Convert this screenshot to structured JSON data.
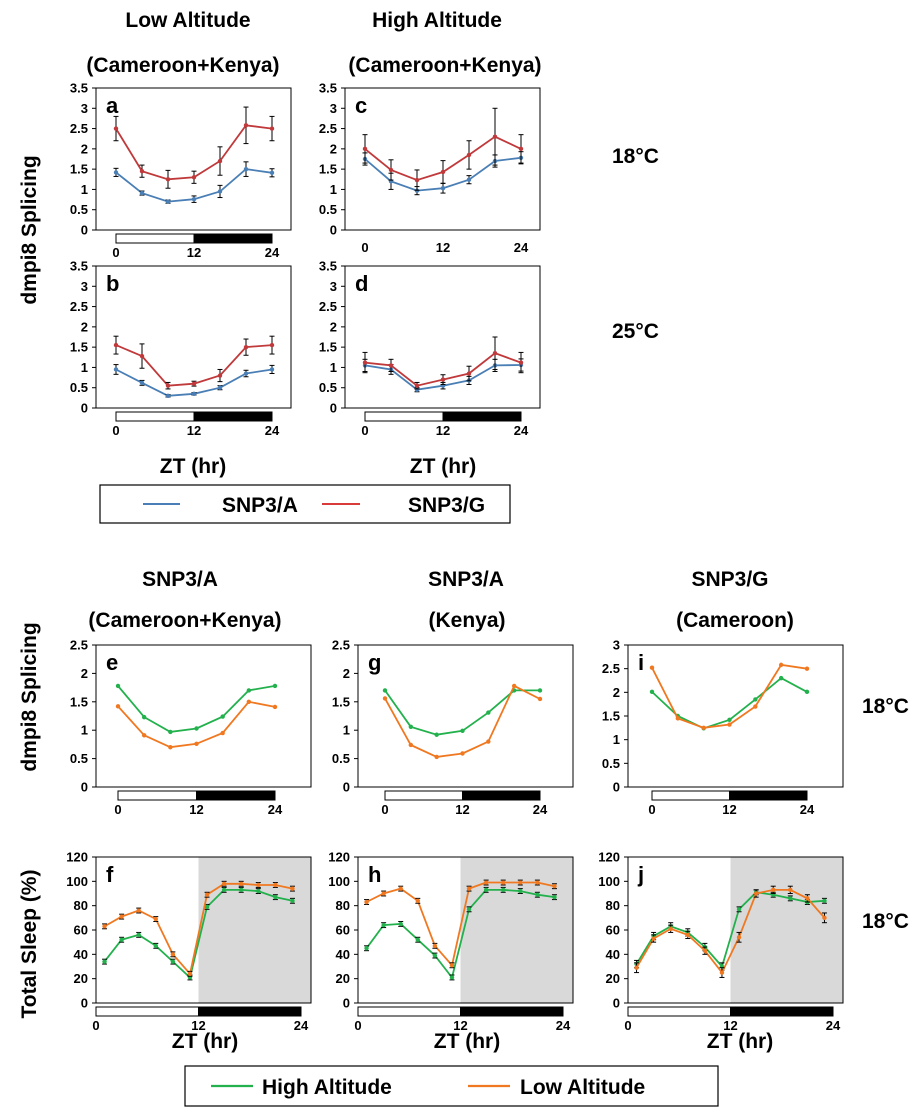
{
  "top_headers": [
    {
      "line1": "Low Altitude",
      "line2": "(Cameroon+Kenya)"
    },
    {
      "line1": "High Altitude",
      "line2": "(Cameroon+Kenya)"
    }
  ],
  "bottom_headers": [
    {
      "line1": "SNP3/A",
      "line2": "(Cameroon+Kenya)"
    },
    {
      "line1": "SNP3/A",
      "line2": "(Kenya)"
    },
    {
      "line1": "SNP3/G",
      "line2": "(Cameroon)"
    }
  ],
  "ylabel_top": "dmpi8 Splicing",
  "ylabel_bottom_splicing": "dmpi8 Splicing",
  "ylabel_bottom_sleep": "Total Sleep (%)",
  "xlabel": "ZT (hr)",
  "temps": {
    "top_row1": "18°C",
    "top_row2": "25°C",
    "bottom_row1": "18°C",
    "bottom_row2": "18°C"
  },
  "legend_top": {
    "items": [
      {
        "label": "SNP3/A",
        "color": "#4a7fb5"
      },
      {
        "label": "SNP3/G",
        "color": "#d93a3a"
      }
    ]
  },
  "legend_bottom": {
    "items": [
      {
        "label": "High Altitude",
        "color": "#22b14c"
      },
      {
        "label": "Low Altitude",
        "color": "#f07820"
      }
    ]
  },
  "colors": {
    "snp3a": "#4a7fb5",
    "snp3g": "#c0393b",
    "high": "#22b14c",
    "low": "#f07820",
    "shade": "#d9d9d9"
  },
  "chart_data": [
    {
      "id": "a",
      "label": "a",
      "type": "line",
      "xticks": [
        0,
        12,
        24
      ],
      "yticks": [
        0,
        0.5,
        1,
        1.5,
        2,
        2.5,
        3,
        3.5
      ],
      "xlim": [
        0,
        24
      ],
      "ylim": [
        0,
        3.5
      ],
      "light_dark_bar": true,
      "shaded_dark": false,
      "series": [
        {
          "key": "snp3a",
          "x": [
            0,
            4,
            8,
            12,
            16,
            20,
            24
          ],
          "y": [
            1.42,
            0.91,
            0.7,
            0.76,
            0.95,
            1.5,
            1.41
          ],
          "err": [
            0.1,
            0.05,
            0.04,
            0.08,
            0.15,
            0.18,
            0.1
          ]
        },
        {
          "key": "snp3g",
          "x": [
            0,
            4,
            8,
            12,
            16,
            20,
            24
          ],
          "y": [
            2.5,
            1.45,
            1.25,
            1.3,
            1.7,
            2.58,
            2.5
          ],
          "err": [
            0.3,
            0.15,
            0.22,
            0.15,
            0.35,
            0.45,
            0.3
          ]
        }
      ]
    },
    {
      "id": "c",
      "label": "c",
      "type": "line",
      "xticks": [
        0,
        12,
        24
      ],
      "yticks": [
        0,
        0.5,
        1,
        1.5,
        2,
        2.5,
        3,
        3.5
      ],
      "xlim": [
        0,
        24
      ],
      "ylim": [
        0,
        3.5
      ],
      "light_dark_bar": false,
      "shaded_dark": false,
      "series": [
        {
          "key": "snp3a",
          "x": [
            0,
            4,
            8,
            12,
            16,
            20,
            24
          ],
          "y": [
            1.75,
            1.2,
            0.97,
            1.03,
            1.24,
            1.7,
            1.78
          ],
          "err": [
            0.15,
            0.2,
            0.1,
            0.12,
            0.1,
            0.15,
            0.15
          ]
        },
        {
          "key": "snp3g",
          "x": [
            0,
            4,
            8,
            12,
            16,
            20,
            24
          ],
          "y": [
            2.0,
            1.48,
            1.23,
            1.43,
            1.85,
            2.3,
            2.0
          ],
          "err": [
            0.35,
            0.25,
            0.25,
            0.28,
            0.35,
            0.7,
            0.35
          ]
        }
      ]
    },
    {
      "id": "b",
      "label": "b",
      "type": "line",
      "xticks": [
        0,
        12,
        24
      ],
      "yticks": [
        0,
        0.5,
        1,
        1.5,
        2,
        2.5,
        3,
        3.5
      ],
      "xlim": [
        0,
        24
      ],
      "ylim": [
        0,
        3.5
      ],
      "light_dark_bar": true,
      "shaded_dark": false,
      "series": [
        {
          "key": "snp3a",
          "x": [
            0,
            4,
            8,
            12,
            16,
            20,
            24
          ],
          "y": [
            0.95,
            0.62,
            0.3,
            0.35,
            0.5,
            0.85,
            0.95
          ],
          "err": [
            0.12,
            0.06,
            0.03,
            0.03,
            0.05,
            0.08,
            0.1
          ]
        },
        {
          "key": "snp3g",
          "x": [
            0,
            4,
            8,
            12,
            16,
            20,
            24
          ],
          "y": [
            1.55,
            1.28,
            0.55,
            0.6,
            0.8,
            1.5,
            1.55
          ],
          "err": [
            0.22,
            0.3,
            0.08,
            0.06,
            0.15,
            0.2,
            0.22
          ]
        }
      ]
    },
    {
      "id": "d",
      "label": "d",
      "type": "line",
      "xticks": [
        0,
        12,
        24
      ],
      "yticks": [
        0,
        0.5,
        1,
        1.5,
        2,
        2.5,
        3,
        3.5
      ],
      "xlim": [
        0,
        24
      ],
      "ylim": [
        0,
        3.5
      ],
      "light_dark_bar": true,
      "shaded_dark": false,
      "series": [
        {
          "key": "snp3a",
          "x": [
            0,
            4,
            8,
            12,
            16,
            20,
            24
          ],
          "y": [
            1.05,
            0.95,
            0.45,
            0.55,
            0.68,
            1.05,
            1.06
          ],
          "err": [
            0.15,
            0.12,
            0.05,
            0.08,
            0.1,
            0.15,
            0.15
          ]
        },
        {
          "key": "snp3g",
          "x": [
            0,
            4,
            8,
            12,
            16,
            20,
            24
          ],
          "y": [
            1.12,
            1.05,
            0.55,
            0.7,
            0.85,
            1.35,
            1.12
          ],
          "err": [
            0.25,
            0.15,
            0.08,
            0.12,
            0.18,
            0.4,
            0.25
          ]
        }
      ]
    },
    {
      "id": "e",
      "label": "e",
      "type": "line",
      "xticks": [
        0,
        12,
        24
      ],
      "yticks": [
        0,
        0.5,
        1,
        1.5,
        2,
        2.5
      ],
      "xlim": [
        0,
        24
      ],
      "ylim": [
        0,
        2.5
      ],
      "light_dark_bar": true,
      "shaded_dark": false,
      "series": [
        {
          "key": "high",
          "x": [
            0,
            4,
            8,
            12,
            16,
            20,
            24
          ],
          "y": [
            1.78,
            1.23,
            0.97,
            1.03,
            1.24,
            1.7,
            1.78
          ]
        },
        {
          "key": "low",
          "x": [
            0,
            4,
            8,
            12,
            16,
            20,
            24
          ],
          "y": [
            1.42,
            0.91,
            0.7,
            0.76,
            0.95,
            1.5,
            1.41
          ]
        }
      ]
    },
    {
      "id": "g",
      "label": "g",
      "type": "line",
      "xticks": [
        0,
        12,
        24
      ],
      "yticks": [
        0,
        0.5,
        1,
        1.5,
        2,
        2.5
      ],
      "xlim": [
        0,
        24
      ],
      "ylim": [
        0,
        2.5
      ],
      "light_dark_bar": true,
      "shaded_dark": false,
      "series": [
        {
          "key": "high",
          "x": [
            0,
            4,
            8,
            12,
            16,
            20,
            24
          ],
          "y": [
            1.7,
            1.06,
            0.92,
            0.99,
            1.31,
            1.7,
            1.7
          ]
        },
        {
          "key": "low",
          "x": [
            0,
            4,
            8,
            12,
            16,
            20,
            24
          ],
          "y": [
            1.56,
            0.74,
            0.53,
            0.59,
            0.8,
            1.78,
            1.55
          ]
        }
      ]
    },
    {
      "id": "i",
      "label": "i",
      "type": "line",
      "xticks": [
        0,
        12,
        24
      ],
      "yticks": [
        0,
        0.5,
        1,
        1.5,
        2,
        2.5,
        3
      ],
      "xlim": [
        0,
        24
      ],
      "ylim": [
        0,
        3
      ],
      "light_dark_bar": true,
      "shaded_dark": false,
      "series": [
        {
          "key": "high",
          "x": [
            0,
            4,
            8,
            12,
            16,
            20,
            24
          ],
          "y": [
            2.01,
            1.5,
            1.24,
            1.42,
            1.85,
            2.3,
            2.01
          ]
        },
        {
          "key": "low",
          "x": [
            0,
            4,
            8,
            12,
            16,
            20,
            24
          ],
          "y": [
            2.52,
            1.45,
            1.25,
            1.32,
            1.7,
            2.58,
            2.5
          ]
        }
      ]
    },
    {
      "id": "f",
      "label": "f",
      "type": "line",
      "xticks": [
        0,
        12,
        24
      ],
      "yticks": [
        0,
        20,
        40,
        60,
        80,
        100,
        120
      ],
      "xlim": [
        0,
        24
      ],
      "ylim": [
        0,
        120
      ],
      "light_dark_bar": true,
      "shaded_dark": true,
      "series": [
        {
          "key": "high",
          "x": [
            1,
            3,
            5,
            7,
            9,
            11,
            13,
            15,
            17,
            19,
            21,
            23
          ],
          "y": [
            34,
            52,
            56,
            47,
            34,
            21,
            79,
            93,
            93,
            92,
            87,
            84
          ],
          "err": [
            2,
            2,
            2,
            2,
            2,
            2,
            2,
            2,
            2,
            2,
            2,
            2
          ]
        },
        {
          "key": "low",
          "x": [
            1,
            3,
            5,
            7,
            9,
            11,
            13,
            15,
            17,
            19,
            21,
            23
          ],
          "y": [
            63,
            71,
            76,
            69,
            40,
            24,
            89,
            98,
            98,
            97,
            97,
            94
          ],
          "err": [
            2,
            2,
            2,
            2,
            2,
            2,
            2,
            2,
            2,
            2,
            2,
            2
          ]
        }
      ]
    },
    {
      "id": "h",
      "label": "h",
      "type": "line",
      "xticks": [
        0,
        12,
        24
      ],
      "yticks": [
        0,
        20,
        40,
        60,
        80,
        100,
        120
      ],
      "xlim": [
        0,
        24
      ],
      "ylim": [
        0,
        120
      ],
      "light_dark_bar": true,
      "shaded_dark": true,
      "series": [
        {
          "key": "high",
          "x": [
            1,
            3,
            5,
            7,
            9,
            11,
            13,
            15,
            17,
            19,
            21,
            23
          ],
          "y": [
            45,
            64,
            65,
            52,
            39,
            21,
            77,
            93,
            93,
            92,
            89,
            87
          ],
          "err": [
            2,
            2,
            2,
            2,
            2,
            2,
            2,
            2,
            2,
            2,
            2,
            2
          ]
        },
        {
          "key": "low",
          "x": [
            1,
            3,
            5,
            7,
            9,
            11,
            13,
            15,
            17,
            19,
            21,
            23
          ],
          "y": [
            83,
            90,
            94,
            84,
            47,
            31,
            94,
            99,
            99,
            99,
            99,
            96
          ],
          "err": [
            2,
            2,
            2,
            2,
            2,
            2,
            2,
            2,
            2,
            2,
            2,
            2
          ]
        }
      ]
    },
    {
      "id": "j",
      "label": "j",
      "type": "line",
      "xticks": [
        0,
        12,
        24
      ],
      "yticks": [
        0,
        20,
        40,
        60,
        80,
        100,
        120
      ],
      "xlim": [
        0,
        24
      ],
      "ylim": [
        0,
        120
      ],
      "light_dark_bar": true,
      "shaded_dark": true,
      "series": [
        {
          "key": "high",
          "x": [
            1,
            3,
            5,
            7,
            9,
            11,
            13,
            15,
            17,
            19,
            21,
            23
          ],
          "y": [
            32,
            55,
            63,
            58,
            46,
            30,
            77,
            91,
            89,
            86,
            83,
            84
          ],
          "err": [
            3,
            3,
            3,
            3,
            3,
            3,
            2,
            2,
            2,
            2,
            2,
            2
          ]
        },
        {
          "key": "low",
          "x": [
            1,
            3,
            5,
            7,
            9,
            11,
            13,
            15,
            17,
            19,
            21,
            23
          ],
          "y": [
            29,
            53,
            61,
            56,
            43,
            25,
            54,
            90,
            93,
            93,
            86,
            70
          ],
          "err": [
            4,
            3,
            3,
            3,
            3,
            4,
            4,
            3,
            3,
            3,
            3,
            4
          ]
        }
      ]
    }
  ]
}
